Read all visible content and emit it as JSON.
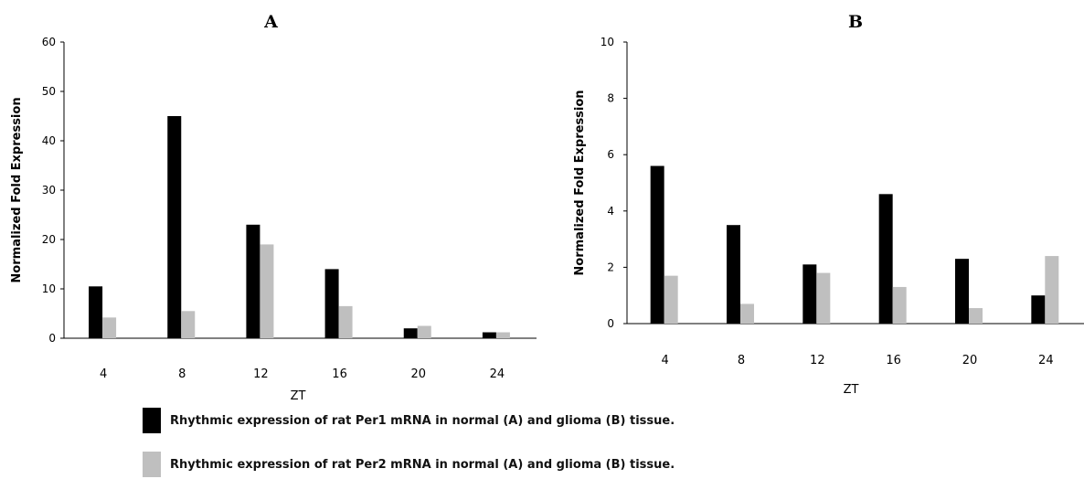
{
  "colors": {
    "per1": "#000000",
    "per2": "#bfbfbf",
    "axis": "#000000"
  },
  "chart_data": [
    {
      "type": "bar",
      "title": "A",
      "xlabel": "ZT",
      "ylabel": "Normalized Fold Expression",
      "categories": [
        "4",
        "8",
        "12",
        "16",
        "20",
        "24"
      ],
      "ylim": [
        0,
        60
      ],
      "yticks": [
        0,
        10,
        20,
        30,
        40,
        50,
        60
      ],
      "grid": false,
      "series": [
        {
          "values": [
            10.5,
            45,
            23,
            14,
            2,
            1.2
          ]
        },
        {
          "values": [
            4.2,
            5.5,
            19,
            6.5,
            2.5,
            1.2
          ]
        }
      ]
    },
    {
      "type": "bar",
      "title": "B",
      "xlabel": "ZT",
      "ylabel": "Normalized Fold Expression",
      "categories": [
        "4",
        "8",
        "12",
        "16",
        "20",
        "24"
      ],
      "ylim": [
        0,
        10
      ],
      "yticks": [
        0,
        2,
        4,
        6,
        8,
        10
      ],
      "grid": false,
      "series": [
        {
          "values": [
            5.6,
            3.5,
            2.1,
            4.6,
            2.3,
            1.0
          ]
        },
        {
          "values": [
            1.7,
            0.7,
            1.8,
            1.3,
            0.55,
            2.4
          ]
        }
      ]
    }
  ],
  "legend": {
    "items": [
      "Rhythmic expression of rat Per1 mRNA in normal (A) and glioma (B) tissue.",
      "Rhythmic expression of rat Per2 mRNA in normal (A) and glioma (B) tissue."
    ]
  }
}
